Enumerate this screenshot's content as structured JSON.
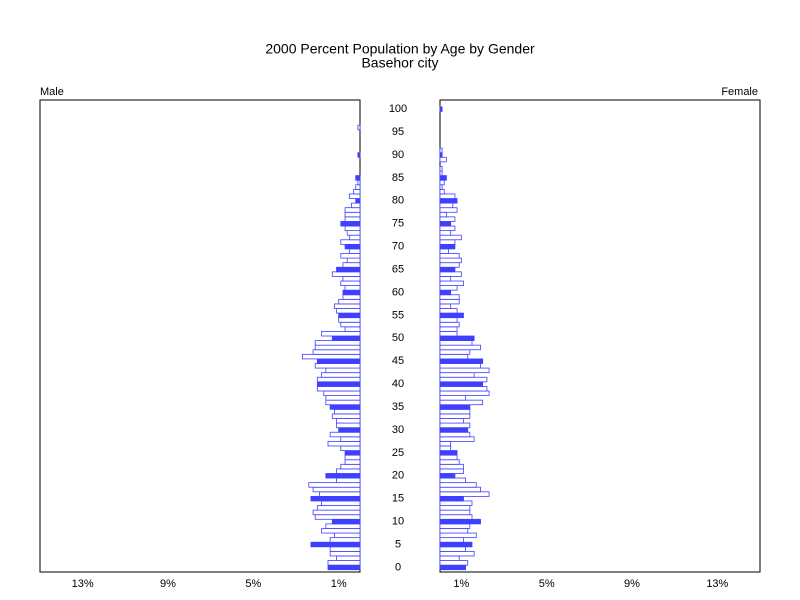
{
  "chart_data": {
    "type": "pyramid",
    "title": "2000 Percent Population by Age by Gender",
    "subtitle": "Basehor city",
    "y": [
      0,
      1,
      2,
      3,
      4,
      5,
      6,
      7,
      8,
      9,
      10,
      11,
      12,
      13,
      14,
      15,
      16,
      17,
      18,
      19,
      20,
      21,
      22,
      23,
      24,
      25,
      26,
      27,
      28,
      29,
      30,
      31,
      32,
      33,
      34,
      35,
      36,
      37,
      38,
      39,
      40,
      41,
      42,
      43,
      44,
      45,
      46,
      47,
      48,
      49,
      50,
      51,
      52,
      53,
      54,
      55,
      56,
      57,
      58,
      59,
      60,
      61,
      62,
      63,
      64,
      65,
      66,
      67,
      68,
      69,
      70,
      71,
      72,
      73,
      74,
      75,
      76,
      77,
      78,
      79,
      80,
      81,
      82,
      83,
      84,
      85,
      86,
      87,
      88,
      89,
      90,
      91,
      92,
      93,
      94,
      95,
      96,
      97,
      98,
      99,
      100
    ],
    "ylim": [
      -1,
      102
    ],
    "yticks": [
      0,
      5,
      10,
      15,
      20,
      25,
      30,
      35,
      40,
      45,
      50,
      55,
      60,
      65,
      70,
      75,
      80,
      85,
      90,
      95,
      100
    ],
    "xlim": [
      0,
      15
    ],
    "xticks": [
      {
        "value": 1,
        "label": "1%"
      },
      {
        "value": 5,
        "label": "5%"
      },
      {
        "value": 9,
        "label": "9%"
      },
      {
        "value": 13,
        "label": "13%"
      }
    ],
    "color": "#3f3fff",
    "highlight_every": 5,
    "series": [
      {
        "name": "Male",
        "values": [
          1.5,
          1.5,
          1.1,
          1.4,
          1.4,
          2.3,
          1.4,
          1.2,
          1.8,
          1.6,
          1.3,
          2.1,
          2.2,
          2.0,
          1.8,
          2.3,
          1.9,
          2.2,
          2.4,
          1.1,
          1.6,
          1.1,
          0.9,
          0.7,
          0.7,
          0.7,
          0.9,
          1.5,
          0.9,
          1.4,
          1.0,
          1.1,
          1.1,
          1.3,
          1.2,
          1.4,
          1.6,
          1.6,
          1.7,
          2.0,
          2.0,
          2.0,
          1.8,
          1.6,
          2.1,
          2.0,
          2.7,
          2.2,
          2.1,
          2.1,
          1.3,
          1.8,
          0.7,
          0.9,
          1.0,
          1.0,
          1.1,
          1.2,
          1.0,
          0.8,
          0.8,
          0.7,
          0.9,
          0.8,
          1.3,
          1.1,
          0.8,
          0.6,
          0.9,
          0.5,
          0.7,
          0.9,
          0.5,
          0.6,
          0.7,
          0.9,
          0.7,
          0.7,
          0.7,
          0.4,
          0.2,
          0.5,
          0.3,
          0.2,
          0.1,
          0.2,
          0,
          0,
          0,
          0,
          0.1,
          0,
          0,
          0,
          0,
          0,
          0.1,
          0,
          0,
          0,
          0
        ]
      },
      {
        "name": "Female",
        "values": [
          1.2,
          1.3,
          0.9,
          1.6,
          1.2,
          1.5,
          1.1,
          1.7,
          1.3,
          1.4,
          1.9,
          1.5,
          1.4,
          1.4,
          1.5,
          1.1,
          2.3,
          1.9,
          1.7,
          1.2,
          0.7,
          1.1,
          1.1,
          0.9,
          0.8,
          0.8,
          0.5,
          0.5,
          1.6,
          1.4,
          1.3,
          1.4,
          1.1,
          1.4,
          1.4,
          1.4,
          2.0,
          1.2,
          2.3,
          2.2,
          2.0,
          2.2,
          1.6,
          2.3,
          1.9,
          2.0,
          1.3,
          1.4,
          1.9,
          1.5,
          1.6,
          0.8,
          0.8,
          0.9,
          0.8,
          1.1,
          0.8,
          0.5,
          0.9,
          0.9,
          0.5,
          0.8,
          1.1,
          0.5,
          1.0,
          0.7,
          0.9,
          1.0,
          0.9,
          0.4,
          0.7,
          0.7,
          1.0,
          0.5,
          0.7,
          0.5,
          0.7,
          0.3,
          0.8,
          0.6,
          0.8,
          0.7,
          0.2,
          0.1,
          0.2,
          0.3,
          0.1,
          0.1,
          0,
          0.3,
          0.1,
          0.1,
          0,
          0,
          0,
          0,
          0,
          0,
          0,
          0,
          0.1
        ]
      }
    ]
  }
}
